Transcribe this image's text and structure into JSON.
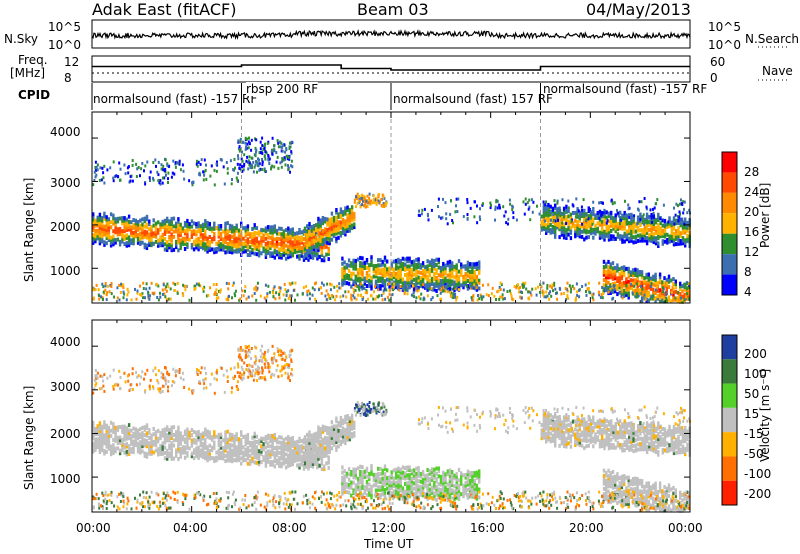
{
  "header": {
    "radar": "Adak East (fitACF)",
    "beam": "Beam 03",
    "date": "04/May/2013"
  },
  "noise_panel": {
    "left_label": "N.Sky",
    "right_label": "N.Search",
    "left_ticks": [
      "10^5",
      "10^0"
    ],
    "right_ticks": [
      "10^5",
      "10^0"
    ]
  },
  "freq_panel": {
    "left_label_1": "Freq.",
    "left_label_2": "[MHz]",
    "left_ticks": [
      "12",
      "8"
    ],
    "right_label": "Nave",
    "right_ticks": [
      "60",
      "0"
    ]
  },
  "cpid": {
    "label": "CPID",
    "segments": [
      {
        "text": "normalsound (fast) -157 RF",
        "start_hour": 0
      },
      {
        "text": "rbsp 200 RF",
        "start_hour": 6
      },
      {
        "text": "normalsound (fast) 157 RF",
        "start_hour": 12
      },
      {
        "text": "normalsound (fast) -157 RF",
        "start_hour": 18
      }
    ]
  },
  "power_panel": {
    "ylabel": "Slant Range [km]",
    "yticks": [
      "4000",
      "3000",
      "2000",
      "1000"
    ],
    "colorbar_label": "Power [dB]",
    "colorbar_ticks": [
      "28",
      "24",
      "20",
      "16",
      "12",
      "8",
      "4"
    ],
    "colorbar_colors": [
      "#ff0000",
      "#ff4a00",
      "#ff8a00",
      "#ffb300",
      "#2f8f2f",
      "#3c6fb0",
      "#0000ff"
    ]
  },
  "velocity_panel": {
    "ylabel": "Slant Range [km]",
    "yticks": [
      "4000",
      "3000",
      "2000",
      "1000"
    ],
    "colorbar_label": "Velocity [m s⁻¹]",
    "colorbar_ticks": [
      "200",
      "100",
      "50",
      "15",
      "-15",
      "-50",
      "-100",
      "-200"
    ],
    "colorbar_colors": [
      "#1f3fa0",
      "#3a7a3a",
      "#54d02a",
      "#c0c0c0",
      "#ffb000",
      "#ff7000",
      "#ff2000"
    ]
  },
  "xaxis": {
    "label": "Time UT",
    "ticks": [
      "00:00",
      "04:00",
      "08:00",
      "12:00",
      "16:00",
      "20:00",
      "00:00"
    ]
  },
  "chart_data": {
    "type": "heatmap",
    "title": "Adak East (fitACF)",
    "subtitle": "Beam 03 — 04/May/2013",
    "xlabel": "Time UT",
    "ylabel": "Slant Range [km]",
    "xlim_hours": [
      0,
      24
    ],
    "ylim_km": [
      200,
      4600
    ],
    "power_colorbar_range_db": [
      0,
      30
    ],
    "velocity_colorbar_range": [
      -250,
      250
    ],
    "frequency_mhz": [
      {
        "start": 0,
        "end": 6,
        "value": 10.3
      },
      {
        "start": 6,
        "end": 10,
        "value": 10.6
      },
      {
        "start": 10,
        "end": 12,
        "value": 9.9
      },
      {
        "start": 12,
        "end": 18,
        "value": 9.6
      },
      {
        "start": 18,
        "end": 24,
        "value": 10.3
      }
    ],
    "backscatter_bands": [
      {
        "t_start": 0,
        "t_end": 9.5,
        "range_km_start": 1900,
        "range_km_end": 1500,
        "peak_power_db": 24
      },
      {
        "t_start": 8.5,
        "t_end": 10.5,
        "range_km_start": 1600,
        "range_km_end": 2200,
        "peak_power_db": 22
      },
      {
        "t_start": 10,
        "t_end": 15.5,
        "range_km_start": 900,
        "range_km_end": 800,
        "peak_power_db": 18
      },
      {
        "t_start": 18,
        "t_end": 24,
        "range_km_start": 2100,
        "range_km_end": 1800,
        "peak_power_db": 18
      },
      {
        "t_start": 20.5,
        "t_end": 24,
        "range_km_start": 800,
        "range_km_end": 300,
        "peak_power_db": 26
      }
    ]
  }
}
